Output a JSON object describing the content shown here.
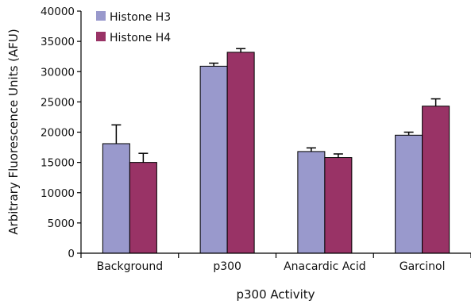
{
  "chart_data": {
    "type": "bar",
    "categories": [
      "Background",
      "p300",
      "Anacardic Acid",
      "Garcinol"
    ],
    "series": [
      {
        "name": "Histone H3",
        "color": "#9999cc",
        "values": [
          18100,
          30900,
          16800,
          19500
        ],
        "errors": [
          3100,
          500,
          600,
          500
        ]
      },
      {
        "name": "Histone H4",
        "color": "#993366",
        "values": [
          15000,
          33200,
          15800,
          24300
        ],
        "errors": [
          1500,
          600,
          600,
          1200
        ]
      }
    ],
    "xlabel": "p300 Activity",
    "ylabel": "Arbitrary Fluorescence Units (AFU)",
    "ylim": [
      0,
      40000
    ],
    "yticks": [
      0,
      5000,
      10000,
      15000,
      20000,
      25000,
      30000,
      35000,
      40000
    ],
    "grid": false,
    "legend_position": "top-left"
  }
}
